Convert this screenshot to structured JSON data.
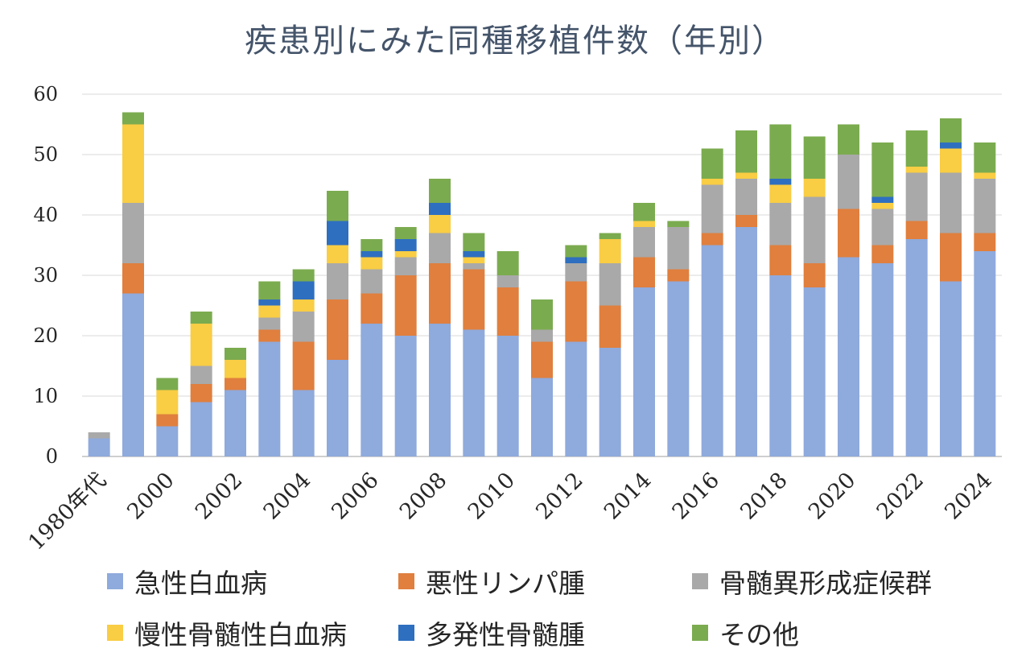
{
  "chart_data": {
    "type": "bar",
    "stacked": true,
    "title": "疾患別にみた同種移植件数（年別）",
    "xlabel": "",
    "ylabel": "",
    "ylim": [
      0,
      60
    ],
    "yticks": [
      0,
      10,
      20,
      30,
      40,
      50,
      60
    ],
    "grid": true,
    "legend_position": "bottom",
    "categories": [
      "1980年代",
      "1999",
      "2000",
      "2001",
      "2002",
      "2003",
      "2004",
      "2005",
      "2006",
      "2007",
      "2008",
      "2009",
      "2010",
      "2011",
      "2012",
      "2013",
      "2014",
      "2015",
      "2016",
      "2017",
      "2018",
      "2019",
      "2020",
      "2021",
      "2022",
      "2023",
      "2024"
    ],
    "x_tick_labels": [
      "1980年代",
      "",
      "2000",
      "",
      "2002",
      "",
      "2004",
      "",
      "2006",
      "",
      "2008",
      "",
      "2010",
      "",
      "2012",
      "",
      "2014",
      "",
      "2016",
      "",
      "2018",
      "",
      "2020",
      "",
      "2022",
      "",
      "2024"
    ],
    "series": [
      {
        "name": "急性白血病",
        "color": "#8faadc",
        "values": [
          3,
          27,
          5,
          9,
          11,
          19,
          11,
          16,
          22,
          20,
          22,
          21,
          20,
          13,
          19,
          18,
          28,
          29,
          35,
          38,
          30,
          28,
          33,
          32,
          36,
          29,
          34
        ]
      },
      {
        "name": "悪性リンパ腫",
        "color": "#e07f3e",
        "values": [
          0,
          5,
          2,
          3,
          2,
          2,
          8,
          10,
          5,
          10,
          10,
          10,
          8,
          6,
          10,
          7,
          5,
          2,
          2,
          2,
          5,
          4,
          8,
          3,
          3,
          8,
          3
        ]
      },
      {
        "name": "骨髄異形成症候群",
        "color": "#a9a9a9",
        "values": [
          1,
          10,
          0,
          3,
          0,
          2,
          5,
          6,
          4,
          3,
          5,
          1,
          2,
          2,
          3,
          7,
          5,
          7,
          8,
          6,
          7,
          11,
          9,
          6,
          8,
          10,
          9
        ]
      },
      {
        "name": "慢性骨髄性白血病",
        "color": "#f9cd44",
        "values": [
          0,
          13,
          4,
          7,
          3,
          2,
          2,
          3,
          2,
          1,
          3,
          1,
          0,
          0,
          0,
          4,
          1,
          0,
          1,
          1,
          3,
          3,
          0,
          1,
          1,
          4,
          1
        ]
      },
      {
        "name": "多発性骨髄腫",
        "color": "#2e6fc0",
        "values": [
          0,
          0,
          0,
          0,
          0,
          1,
          3,
          4,
          1,
          2,
          2,
          1,
          0,
          0,
          1,
          0,
          0,
          0,
          0,
          0,
          1,
          0,
          0,
          1,
          0,
          1,
          0
        ]
      },
      {
        "name": "その他",
        "color": "#7bab4f",
        "values": [
          0,
          2,
          2,
          2,
          2,
          3,
          2,
          5,
          2,
          2,
          4,
          3,
          4,
          5,
          2,
          1,
          3,
          1,
          5,
          7,
          9,
          7,
          5,
          9,
          6,
          4,
          5
        ]
      }
    ]
  }
}
